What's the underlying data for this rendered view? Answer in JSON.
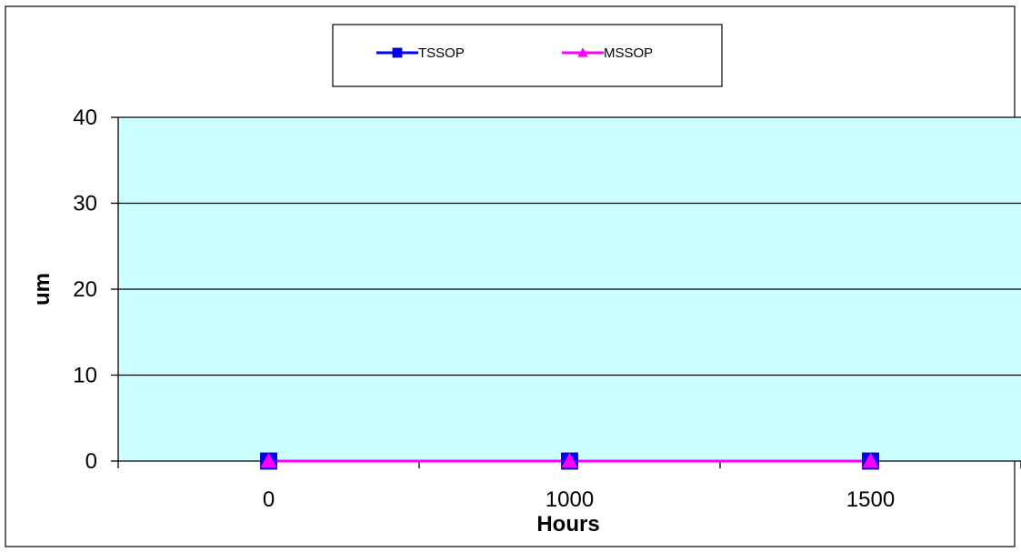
{
  "chart_data": {
    "type": "line",
    "categories": [
      "0",
      "1000",
      "1500"
    ],
    "xlabel": "Hours",
    "ylabel": "um",
    "ylim": [
      0,
      40
    ],
    "yticks": [
      0,
      10,
      20,
      30,
      40
    ],
    "grid": true,
    "legend_position": "top",
    "plot_background": "#ccffff",
    "series": [
      {
        "name": "TSSOP",
        "values": [
          0,
          0,
          0
        ],
        "color": "#0000ff",
        "marker": "square"
      },
      {
        "name": "MSSOP",
        "values": [
          0,
          0,
          0
        ],
        "color": "#ff00ff",
        "marker": "triangle"
      }
    ]
  }
}
